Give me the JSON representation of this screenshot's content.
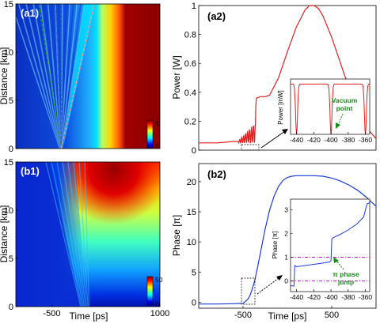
{
  "chart_data": [
    {
      "id": "a1",
      "type": "heatmap",
      "panel_label": "(a1)",
      "ylabel": "Distance [km]",
      "yticks": [
        "0",
        "5",
        "10",
        "15"
      ],
      "ylim": [
        0,
        15
      ],
      "xlim": [
        -1000,
        1000
      ],
      "colorbar": {
        "min": 0,
        "max": 1,
        "ticks": [
          "0",
          "1"
        ]
      },
      "overlay_lines": [
        {
          "style": "dashed",
          "color": "#2aa02a",
          "x0": -370,
          "x1": -680
        },
        {
          "style": "dashed",
          "color": "#2a6ab0",
          "x0": -370,
          "x1": -370
        },
        {
          "style": "dashed",
          "color": "#4a6ad0",
          "x0": -370,
          "x1": -450
        },
        {
          "style": "dashed",
          "color": "#e8a090",
          "x0": -370,
          "x1": 90
        }
      ]
    },
    {
      "id": "a2",
      "type": "line",
      "panel_label": "(a2)",
      "ylabel": "Power [W]",
      "yticks": [
        "0",
        "0.2",
        "0.4",
        "0.6",
        "0.8",
        "1"
      ],
      "ylim": [
        0,
        1
      ],
      "xlim": [
        -1000,
        1000
      ],
      "color": "#e02020",
      "points": [
        [
          -1000,
          0.05
        ],
        [
          -900,
          0.05
        ],
        [
          -800,
          0.05
        ],
        [
          -700,
          0.055
        ],
        [
          -600,
          0.06
        ],
        [
          -550,
          0.06
        ],
        [
          -500,
          0.065
        ],
        [
          -450,
          0.07
        ],
        [
          -400,
          0.08
        ],
        [
          -380,
          0.06
        ],
        [
          -350,
          0.36
        ],
        [
          -300,
          0.37
        ],
        [
          -250,
          0.37
        ],
        [
          -200,
          0.38
        ],
        [
          -100,
          0.5
        ],
        [
          0,
          0.68
        ],
        [
          100,
          0.85
        ],
        [
          200,
          0.97
        ],
        [
          250,
          1.0
        ],
        [
          300,
          1.0
        ],
        [
          350,
          0.98
        ],
        [
          400,
          0.93
        ],
        [
          500,
          0.78
        ],
        [
          600,
          0.6
        ],
        [
          700,
          0.42
        ],
        [
          800,
          0.26
        ],
        [
          900,
          0.15
        ],
        [
          1000,
          0.08
        ]
      ],
      "oscillation": {
        "x_start": -560,
        "x_end": -360,
        "cycles": 9,
        "amp_start": 0.01,
        "amp_end": 0.14
      },
      "inset": {
        "ylabel": "Power [mW]",
        "xticks": [
          "-440",
          "-420",
          "-400",
          "-380",
          "-360"
        ],
        "xlim": [
          -447,
          -355
        ],
        "ylim": [
          0,
          1.1
        ],
        "yticks": [
          "0",
          "1"
        ],
        "color": "#e02020",
        "dips": [
          -440,
          -400,
          -360
        ],
        "annotation": "Vacuum point",
        "annotation_lines": [
          "Vacuum",
          "point"
        ]
      }
    },
    {
      "id": "b1",
      "type": "heatmap",
      "panel_label": "(b1)",
      "ylabel": "Distance [km]",
      "xlabel": "Time [ps]",
      "xticks": [
        "-500",
        "1000"
      ],
      "yticks": [
        "0",
        "5",
        "10",
        "15"
      ],
      "ylim": [
        0,
        15
      ],
      "xlim": [
        -1000,
        1000
      ],
      "colorbar": {
        "min": 0,
        "max": 50,
        "ticks": [
          "0",
          "50"
        ]
      }
    },
    {
      "id": "b2",
      "type": "line",
      "panel_label": "(b2)",
      "ylabel": "Phase [π]",
      "xlabel": "Time [ps]",
      "xticks": [
        "-500",
        "500"
      ],
      "yticks": [
        "0",
        "5",
        "10",
        "15",
        "20"
      ],
      "ylim": [
        -1,
        23
      ],
      "xlim": [
        -1000,
        1000
      ],
      "color": "#1a3ad8",
      "points": [
        [
          -1000,
          -0.3
        ],
        [
          -800,
          -0.3
        ],
        [
          -600,
          -0.25
        ],
        [
          -500,
          -0.2
        ],
        [
          -460,
          0.3
        ],
        [
          -440,
          0.6
        ],
        [
          -420,
          1.2
        ],
        [
          -400,
          2.0
        ],
        [
          -370,
          3.5
        ],
        [
          -340,
          5.5
        ],
        [
          -300,
          8.5
        ],
        [
          -250,
          12.2
        ],
        [
          -200,
          15.3
        ],
        [
          -150,
          17.6
        ],
        [
          -100,
          19.2
        ],
        [
          -50,
          20.2
        ],
        [
          0,
          20.7
        ],
        [
          50,
          20.9
        ],
        [
          100,
          21.0
        ],
        [
          200,
          21.0
        ],
        [
          300,
          21.0
        ],
        [
          400,
          20.9
        ],
        [
          500,
          20.6
        ],
        [
          600,
          20.1
        ],
        [
          700,
          19.4
        ],
        [
          800,
          18.5
        ],
        [
          900,
          17.3
        ],
        [
          1000,
          15.9
        ]
      ],
      "inset": {
        "ylabel": "Phase [π]",
        "xticks": [
          "-440",
          "-420",
          "-400",
          "-380",
          "-360"
        ],
        "yticks": [
          "0",
          "1",
          "2",
          "3"
        ],
        "xlim": [
          -447,
          -355
        ],
        "ylim": [
          -0.45,
          3.45
        ],
        "color": "#1a3ad8",
        "ref_lines": [
          1,
          0
        ],
        "points": [
          [
            -447,
            -0.2
          ],
          [
            -443,
            -0.22
          ],
          [
            -442,
            0.65
          ],
          [
            -440,
            0.6
          ],
          [
            -430,
            0.65
          ],
          [
            -420,
            0.7
          ],
          [
            -410,
            0.75
          ],
          [
            -402,
            0.8
          ],
          [
            -400,
            0.85
          ],
          [
            -399,
            1.78
          ],
          [
            -397,
            1.83
          ],
          [
            -390,
            1.95
          ],
          [
            -380,
            2.15
          ],
          [
            -370,
            2.4
          ],
          [
            -362,
            2.7
          ],
          [
            -360,
            3.0
          ],
          [
            -358,
            3.25
          ],
          [
            -355,
            3.3
          ]
        ],
        "annotation": "π phase jump",
        "annotation_lines": [
          "π phase",
          "jump"
        ]
      }
    }
  ]
}
